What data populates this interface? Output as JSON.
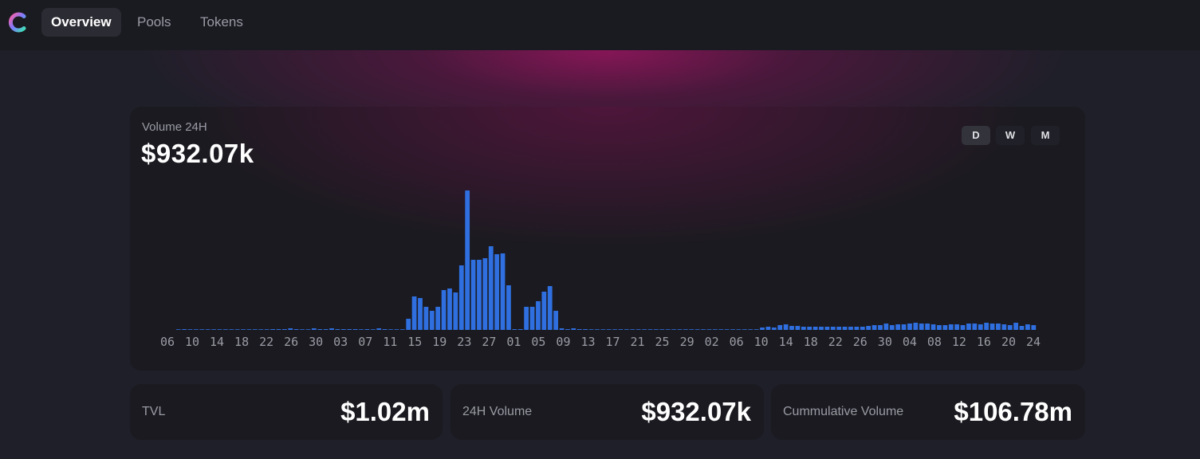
{
  "colors": {
    "accent": "#2f6fe0",
    "background": "#1f1f29",
    "card": "#1a1a20",
    "glow": "#8c165a"
  },
  "header": {
    "logo_icon": "circular-c-logo-icon",
    "nav": [
      {
        "label": "Overview",
        "active": true
      },
      {
        "label": "Pools",
        "active": false
      },
      {
        "label": "Tokens",
        "active": false
      }
    ]
  },
  "volume_chart": {
    "label": "Volume 24H",
    "value": "$932.07k",
    "ranges": [
      {
        "label": "D",
        "active": true
      },
      {
        "label": "W",
        "active": false
      },
      {
        "label": "M",
        "active": false
      }
    ]
  },
  "chart_data": {
    "type": "bar",
    "title": "",
    "xlabel": "",
    "ylabel": "",
    "ylim": [
      0,
      175
    ],
    "tick_labels": [
      "06",
      "10",
      "14",
      "18",
      "22",
      "26",
      "30",
      "03",
      "07",
      "11",
      "15",
      "19",
      "23",
      "27",
      "01",
      "05",
      "09",
      "13",
      "17",
      "21",
      "25",
      "29",
      "02",
      "06",
      "10",
      "14",
      "18",
      "22",
      "26",
      "30",
      "04",
      "08",
      "12",
      "16",
      "20",
      "24"
    ],
    "values": [
      0,
      1,
      0,
      0,
      0,
      0,
      0,
      0,
      0,
      0,
      0,
      0,
      0,
      0,
      0,
      0,
      1,
      1,
      1,
      2,
      1,
      0,
      0,
      2,
      1,
      1,
      2,
      1,
      1,
      1,
      1,
      0,
      1,
      0,
      2,
      1,
      0,
      0,
      0,
      14,
      42,
      40,
      29,
      24,
      29,
      50,
      52,
      47,
      81,
      175,
      88,
      88,
      90,
      105,
      95,
      96,
      56,
      1,
      1,
      29,
      29,
      36,
      48,
      55,
      24,
      2,
      1,
      2,
      1,
      1,
      0,
      0,
      0,
      0,
      0,
      0,
      0,
      0,
      0,
      0,
      0,
      0,
      0,
      0,
      0,
      0,
      0,
      0,
      0,
      0,
      0,
      0,
      0,
      0,
      0,
      0,
      0,
      0,
      0,
      3,
      4,
      3,
      6,
      7,
      5,
      5,
      4,
      4,
      4,
      4,
      4,
      4,
      4,
      4,
      4,
      4,
      4,
      5,
      6,
      6,
      8,
      6,
      7,
      7,
      8,
      9,
      8,
      8,
      7,
      6,
      6,
      7,
      7,
      6,
      8,
      8,
      7,
      9,
      8,
      8,
      7,
      6,
      9,
      5,
      7,
      6
    ]
  },
  "stats": [
    {
      "label": "TVL",
      "value": "$1.02m"
    },
    {
      "label": "24H Volume",
      "value": "$932.07k"
    },
    {
      "label": "Cummulative Volume",
      "value": "$106.78m"
    }
  ]
}
